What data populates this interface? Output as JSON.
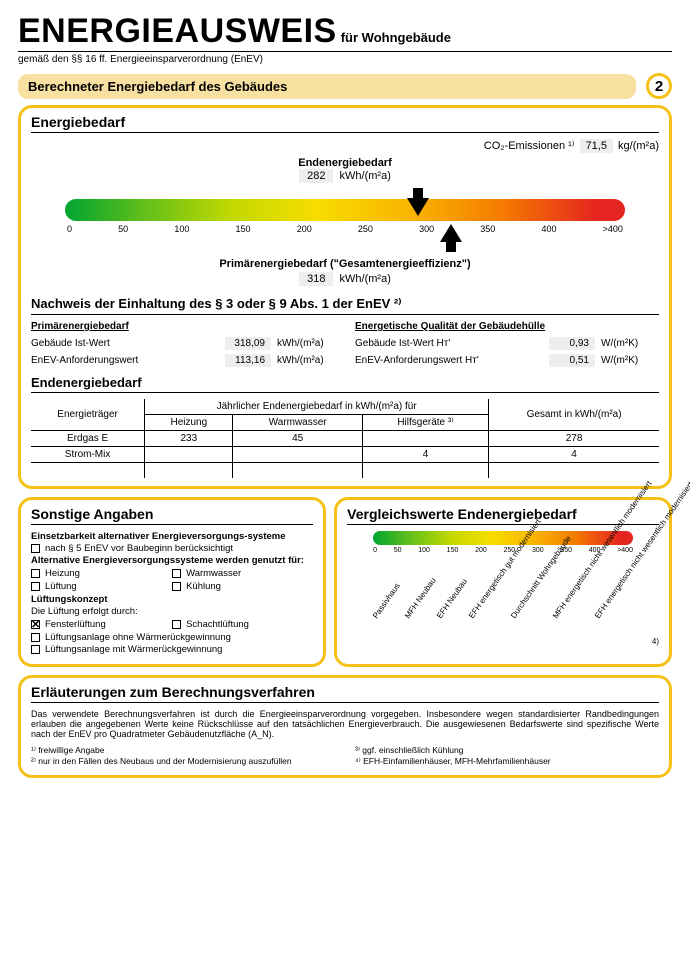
{
  "header": {
    "title": "ENERGIEAUSWEIS",
    "subtitle": "für Wohngebäude",
    "legal": "gemäß den §§ 16 ff. Energieeinsparverordnung (EnEV)"
  },
  "page_number": "2",
  "section_title": "Berechneter Energiebedarf des Gebäudes",
  "energiebedarf": {
    "heading": "Energiebedarf",
    "co2_label": "CO₂-Emissionen ¹⁾",
    "co2_value": "71,5",
    "co2_unit": "kg/(m²a)",
    "end_label": "Endenergiebedarf",
    "end_value": "282",
    "end_unit": "kWh/(m²a)",
    "ticks": [
      "0",
      "50",
      "100",
      "150",
      "200",
      "250",
      "300",
      "350",
      "400",
      ">400"
    ],
    "arrow_top_pct": 63,
    "arrow_bot_pct": 69,
    "prim_label": "Primärenergiebedarf (\"Gesamtenergieeffizienz\")",
    "prim_value": "318",
    "prim_unit": "kWh/(m²a)"
  },
  "nachweis": {
    "heading": "Nachweis der Einhaltung des § 3 oder § 9 Abs. 1 der EnEV ²⁾",
    "left_u": "Primärenergiebedarf",
    "l1_lab": "Gebäude Ist-Wert",
    "l1_v": "318,09",
    "l1_u": "kWh/(m²a)",
    "l2_lab": "EnEV-Anforderungswert",
    "l2_v": "113,16",
    "l2_u": "kWh/(m²a)",
    "right_u": "Energetische Qualität der Gebäudehülle",
    "r1_lab": "Gebäude Ist-Wert Hᴛ'",
    "r1_v": "0,93",
    "r1_u": "W/(m²K)",
    "r2_lab": "EnEV-Anforderungswert Hᴛ'",
    "r2_v": "0,51",
    "r2_u": "W/(m²K)"
  },
  "endtable": {
    "heading": "Endenergiebedarf",
    "col_traeger": "Energieträger",
    "col_jahr": "Jährlicher Endenergiebedarf in kWh/(m²a) für",
    "col_heiz": "Heizung",
    "col_ww": "Warmwasser",
    "col_hilf": "Hilfsgeräte ³⁾",
    "col_ges": "Gesamt in kWh/(m²a)",
    "r1": {
      "t": "Erdgas E",
      "h": "233",
      "w": "45",
      "hi": "",
      "g": "278"
    },
    "r2": {
      "t": "Strom-Mix",
      "h": "",
      "w": "",
      "hi": "4",
      "g": "4"
    }
  },
  "sonstige": {
    "heading": "Sonstige Angaben",
    "l1": "Einsetzbarkeit alternativer Energieversorgungs-systeme",
    "l1a": "nach § 5 EnEV vor Baubeginn berücksichtigt",
    "l2": "Alternative Energieversorgungssysteme werden genutzt für:",
    "o1": "Heizung",
    "o2": "Warmwasser",
    "o3": "Lüftung",
    "o4": "Kühlung",
    "l3": "Lüftungskonzept",
    "l3a": "Die Lüftung erfolgt durch:",
    "p1": "Fensterlüftung",
    "p2": "Schachtlüftung",
    "p3": "Lüftungsanlage ohne Wärmerückgewinnung",
    "p4": "Lüftungsanlage mit Wärmerückgewinnung"
  },
  "vergleich": {
    "heading": "Vergleichswerte Endenergiebedarf",
    "ticks": [
      "0",
      "50",
      "100",
      "150",
      "200",
      "250",
      "300",
      "350",
      "400",
      ">400"
    ],
    "labels": [
      "Passivhaus",
      "MFH Neubau",
      "EFH Neubau",
      "EFH energetisch gut modernisiert",
      "Durchschnitt Wohngebäude",
      "MFH energetisch nicht wesentlich modernisiert",
      "EFH energetisch nicht wesentlich modernisiert"
    ],
    "note": "4)"
  },
  "erl": {
    "heading": "Erläuterungen zum Berechnungsverfahren",
    "text": "Das verwendete Berechnungsverfahren ist durch die Energieeinsparverordnung vorgegeben. Insbesondere wegen standardisierter Randbedingungen erlauben die angegebenen Werte keine Rückschlüsse auf den tatsächlichen Energieverbrauch. Die ausgewiesenen Bedarfswerte sind spezifische Werte nach der EnEV pro Quadratmeter Gebäudenutzfläche (A_N).",
    "f1": "¹⁾   freiwillige Angabe",
    "f2": "²⁾   nur in den Fällen des Neubaus und der Modernisierung auszufüllen",
    "f3": "³⁾   ggf. einschließlich Kühlung",
    "f4": "⁴⁾   EFH-Einfamilienhäuser, MFH-Mehrfamilienhäuser"
  }
}
